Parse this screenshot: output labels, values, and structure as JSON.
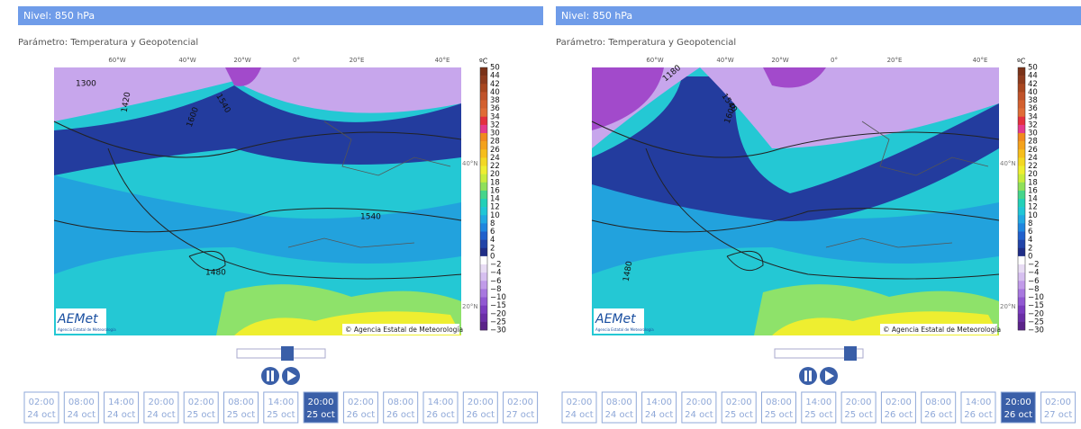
{
  "panels": [
    {
      "header": "Nivel: 850 hPa",
      "parameter": "Parámetro: Temperatura y Geopotencial",
      "map": {
        "lon_labels": [
          "60°W",
          "40°W",
          "20°W",
          "0°",
          "20°E",
          "40°E"
        ],
        "lat_labels": [
          "40°N",
          "20°N"
        ],
        "contour_labels": [
          "1300",
          "1420",
          "1540",
          "1600",
          "1540",
          "1480"
        ],
        "credit": "© Agencia Estatal de Meteorología",
        "logo": "AEMet",
        "logo_sub": "Agencia Estatal de Meteorología"
      },
      "colorbar": {
        "unit": "ºC",
        "labels": [
          "50",
          "44",
          "42",
          "40",
          "38",
          "36",
          "34",
          "32",
          "30",
          "28",
          "26",
          "24",
          "22",
          "20",
          "18",
          "16",
          "14",
          "12",
          "10",
          "8",
          "6",
          "4",
          "2",
          "0",
          "−2",
          "−4",
          "−6",
          "−8",
          "−10",
          "−15",
          "−20",
          "−25",
          "−30"
        ]
      },
      "active": 7,
      "times": [
        {
          "hour": "02:00",
          "date": "24 oct"
        },
        {
          "hour": "08:00",
          "date": "24 oct"
        },
        {
          "hour": "14:00",
          "date": "24 oct"
        },
        {
          "hour": "20:00",
          "date": "24 oct"
        },
        {
          "hour": "02:00",
          "date": "25 oct"
        },
        {
          "hour": "08:00",
          "date": "25 oct"
        },
        {
          "hour": "14:00",
          "date": "25 oct"
        },
        {
          "hour": "20:00",
          "date": "25 oct"
        },
        {
          "hour": "02:00",
          "date": "26 oct"
        },
        {
          "hour": "08:00",
          "date": "26 oct"
        },
        {
          "hour": "14:00",
          "date": "26 oct"
        },
        {
          "hour": "20:00",
          "date": "26 oct"
        },
        {
          "hour": "02:00",
          "date": "27 oct"
        }
      ]
    },
    {
      "header": "Nivel: 850 hPa",
      "parameter": "Parámetro: Temperatura y Geopotencial",
      "map": {
        "lon_labels": [
          "60°W",
          "40°W",
          "20°W",
          "0°",
          "20°E",
          "40°E"
        ],
        "lat_labels": [
          "40°N",
          "20°N"
        ],
        "contour_labels": [
          "1180",
          "1540",
          "1600",
          "1480"
        ],
        "credit": "© Agencia Estatal de Meteorología",
        "logo": "AEMet",
        "logo_sub": "Agencia Estatal de Meteorología"
      },
      "colorbar": {
        "unit": "ºC",
        "labels": [
          "50",
          "44",
          "42",
          "40",
          "38",
          "36",
          "34",
          "32",
          "30",
          "28",
          "26",
          "24",
          "22",
          "20",
          "18",
          "16",
          "14",
          "12",
          "10",
          "8",
          "6",
          "4",
          "2",
          "0",
          "−2",
          "−4",
          "−6",
          "−8",
          "−10",
          "−15",
          "−20",
          "−25",
          "−30"
        ]
      },
      "active": 11,
      "times": [
        {
          "hour": "02:00",
          "date": "24 oct"
        },
        {
          "hour": "08:00",
          "date": "24 oct"
        },
        {
          "hour": "14:00",
          "date": "24 oct"
        },
        {
          "hour": "20:00",
          "date": "24 oct"
        },
        {
          "hour": "02:00",
          "date": "25 oct"
        },
        {
          "hour": "08:00",
          "date": "25 oct"
        },
        {
          "hour": "14:00",
          "date": "25 oct"
        },
        {
          "hour": "20:00",
          "date": "25 oct"
        },
        {
          "hour": "02:00",
          "date": "26 oct"
        },
        {
          "hour": "08:00",
          "date": "26 oct"
        },
        {
          "hour": "14:00",
          "date": "26 oct"
        },
        {
          "hour": "20:00",
          "date": "26 oct"
        },
        {
          "hour": "02:00",
          "date": "27 oct"
        }
      ]
    }
  ]
}
